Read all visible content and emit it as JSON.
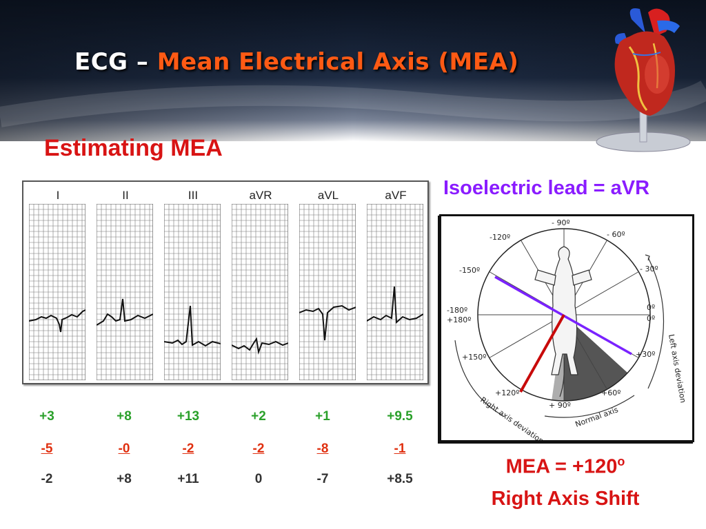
{
  "title": {
    "part1": "ECG – ",
    "part2": "Mean Electrical Axis (MEA)"
  },
  "subtitle": "Estimating MEA",
  "isoelectric": "Isoelectric lead = aVR",
  "leads": [
    {
      "label": "I",
      "pos": "+3",
      "neg": "-5",
      "result": "-2"
    },
    {
      "label": "II",
      "pos": "+8",
      "neg": "-0",
      "result": "+8"
    },
    {
      "label": "III",
      "pos": "+13",
      "neg": "-2",
      "result": "+11"
    },
    {
      "label": "aVR",
      "pos": "+2",
      "neg": "-2",
      "result": "0"
    },
    {
      "label": "aVL",
      "pos": "+1",
      "neg": "-8",
      "result": "-7"
    },
    {
      "label": "aVF",
      "pos": "+9.5",
      "neg": "-1",
      "result": "+8.5"
    }
  ],
  "axis_diagram": {
    "angles": [
      "- 90º",
      "- 60º",
      "- 30º",
      "0º",
      "0º",
      "+30º",
      "+60º",
      "+ 90º",
      "+120º",
      "+150º",
      "+180º",
      "-180º",
      "-150º",
      "-120º"
    ],
    "regions": [
      "Left axis deviation",
      "Right axis deviation",
      "Normal axis"
    ],
    "colors": {
      "isoelectric_line": "#7a22ff",
      "mea_line": "#c80a0a"
    }
  },
  "result": {
    "mea": "MEA = +120",
    "deg": "o",
    "shift": "Right Axis Shift"
  }
}
